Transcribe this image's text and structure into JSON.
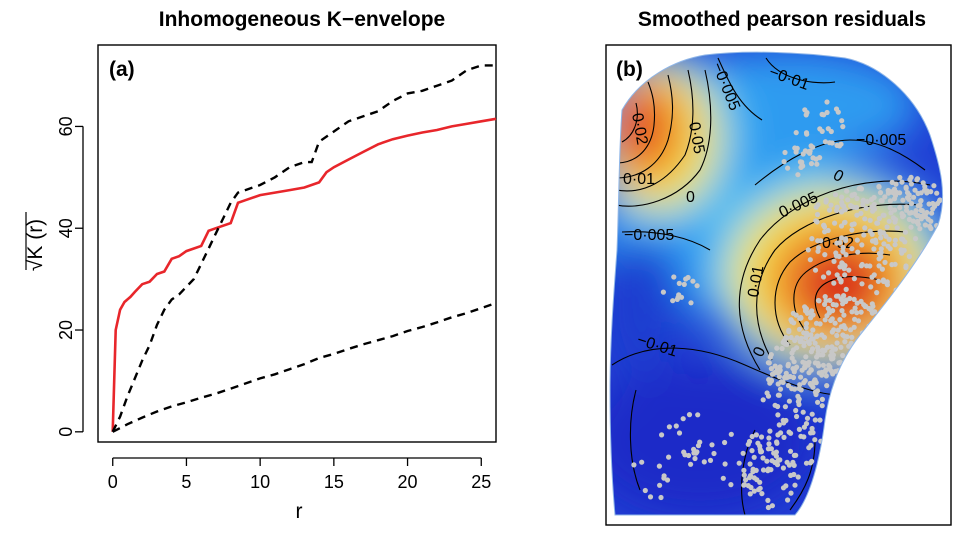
{
  "chart_data": [
    {
      "panel": "(a)",
      "type": "line",
      "title": "Inhomogeneous K−envelope",
      "xlabel": "r",
      "ylabel": "K (r)",
      "ylabel_prefix": "√",
      "xlim": [
        -1,
        26
      ],
      "ylim": [
        -2,
        76
      ],
      "xticks": [
        0,
        5,
        10,
        15,
        20,
        25
      ],
      "yticks": [
        0,
        20,
        40,
        60
      ],
      "grid": false,
      "series": [
        {
          "style": "solid",
          "color": "#e8262b",
          "x": [
            0,
            0.2,
            0.5,
            0.8,
            1.2,
            1.5,
            2,
            2.5,
            3,
            3.5,
            4,
            4.5,
            5,
            6,
            6.5,
            7,
            8,
            8.5,
            9,
            10,
            11,
            12,
            13,
            14,
            14.5,
            15,
            16,
            17,
            18,
            19,
            20,
            21,
            22,
            23,
            24,
            25,
            26
          ],
          "y": [
            0,
            20,
            24,
            25.5,
            26.5,
            27.5,
            29,
            29.5,
            31,
            31.5,
            34,
            34.5,
            35.5,
            36.5,
            39.5,
            40,
            41,
            45,
            45.5,
            46.5,
            47,
            47.5,
            48,
            49,
            51,
            52,
            53.5,
            55,
            56.5,
            57.5,
            58.2,
            58.8,
            59.3,
            60,
            60.5,
            61,
            61.5
          ]
        },
        {
          "style": "dashed",
          "color": "#000000",
          "x": [
            0,
            0.5,
            1,
            2,
            2.5,
            3,
            3.5,
            4,
            4.5,
            5,
            5.5,
            6,
            6.5,
            7,
            7.5,
            8,
            8.5,
            9,
            10,
            11,
            12,
            13,
            13.5,
            14,
            15,
            16,
            17,
            18,
            19,
            20,
            21,
            22,
            23,
            24,
            25,
            26
          ],
          "y": [
            0,
            3,
            7,
            14,
            17,
            21,
            24,
            26,
            27,
            28.5,
            30,
            33,
            36,
            39,
            42,
            45,
            47,
            47.5,
            48.5,
            50,
            52,
            53,
            53,
            57,
            59,
            61,
            62,
            63,
            65,
            66.5,
            67,
            68,
            69,
            71,
            72,
            72
          ]
        },
        {
          "style": "dashed",
          "color": "#000000",
          "x": [
            0,
            1,
            2,
            3,
            4,
            5,
            6,
            7,
            8,
            9,
            10,
            11,
            12,
            13,
            14,
            15,
            16,
            17,
            18,
            19,
            20,
            21,
            22,
            23,
            24,
            25,
            26
          ],
          "y": [
            0,
            1.5,
            2.8,
            4,
            5,
            5.8,
            6.7,
            7.5,
            8.5,
            9.5,
            10.5,
            11.3,
            12.3,
            13.3,
            14.5,
            15.3,
            16.3,
            17.2,
            18,
            18.8,
            19.8,
            20.6,
            21.5,
            22.5,
            23.3,
            24.3,
            25.3
          ]
        }
      ]
    },
    {
      "panel": "(b)",
      "type": "heatmap",
      "title": "Smoothed pearson residuals",
      "colormap": [
        "#1a2ecc",
        "#1f5fe8",
        "#2f9bf0",
        "#56ccf5",
        "#f5e94a",
        "#f6b52e",
        "#ee6a22",
        "#d9211a"
      ],
      "contour_labels": [
        "−0·01",
        "−0·005",
        "0·05",
        "0·02",
        "0·01",
        "0",
        "−0·005",
        "0",
        "0·005",
        "0·02",
        "−0·005",
        "0·01",
        "0",
        "−0·01"
      ],
      "hotspots": [
        {
          "location": "upper-left",
          "peak": 0.02
        },
        {
          "location": "center-right",
          "peak": 0.02
        }
      ],
      "points_color": "#c8c8c8"
    }
  ]
}
